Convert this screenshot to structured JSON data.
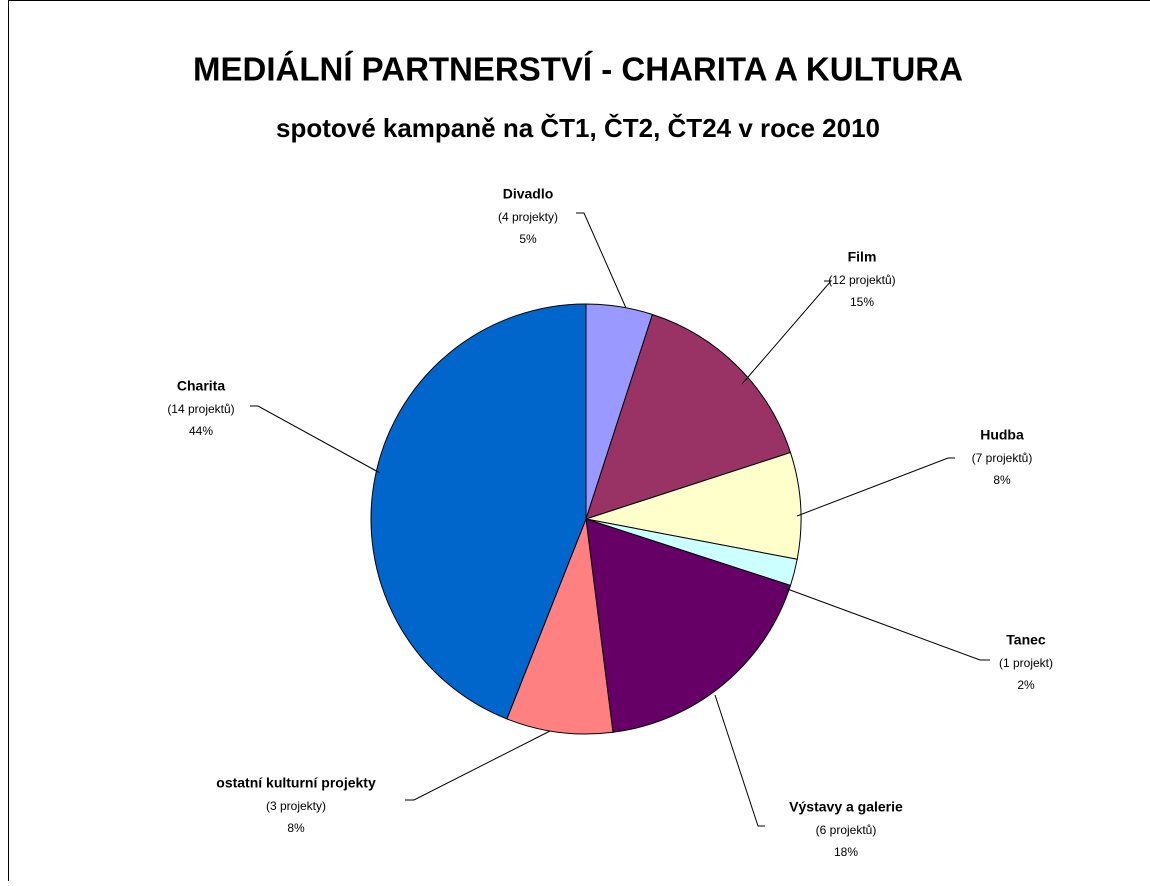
{
  "chart_data": {
    "type": "pie",
    "title": "MEDIÁLNÍ PARTNERSTVÍ - CHARITA A KULTURA",
    "subtitle": "spotové kampaně na ČT1, ČT2, ČT24 v roce 2010",
    "categories": [
      "Divadlo",
      "Film",
      "Hudba",
      "Tanec",
      "Výstavy a galerie",
      "ostatní kulturní projekty",
      "Charita"
    ],
    "details": [
      "(4 projekty)",
      "(12 projektů)",
      "(7 projektů)",
      "(1 projekt)",
      "(6 projektů)",
      "(3 projekty)",
      "(14 projektů)"
    ],
    "values": [
      5,
      15,
      8,
      2,
      18,
      8,
      44
    ],
    "value_labels": [
      "5%",
      "15%",
      "8%",
      "2%",
      "18%",
      "8%",
      "44%"
    ],
    "colors": [
      "#9999ff",
      "#993366",
      "#ffffcc",
      "#ccffff",
      "#660066",
      "#ff8080",
      "#0066cc"
    ]
  }
}
